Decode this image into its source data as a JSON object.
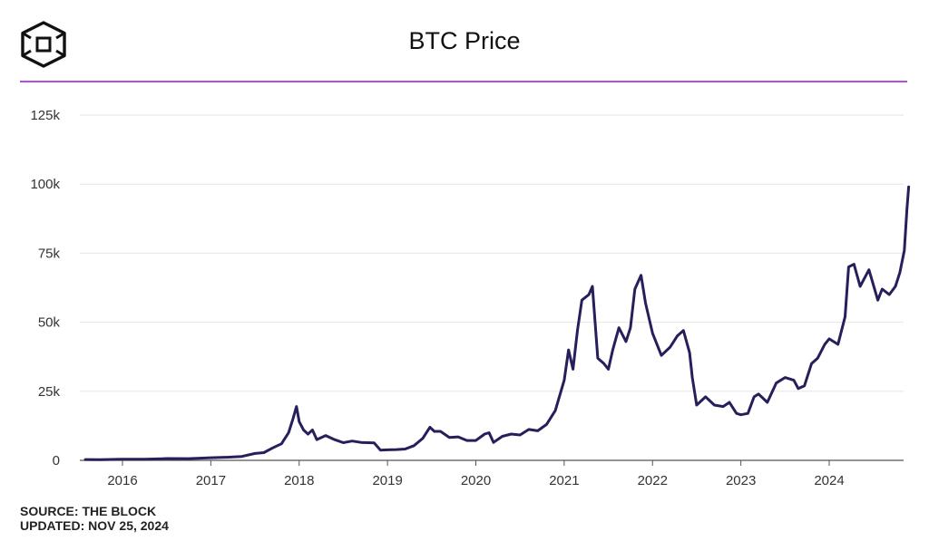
{
  "header": {
    "title": "BTC Price",
    "logo_icon": "the-block-cube-icon",
    "accent_color": "#b14fe0"
  },
  "footer": {
    "source": "SOURCE: THE BLOCK",
    "updated": "UPDATED: NOV 25, 2024"
  },
  "chart_data": {
    "type": "line",
    "title": "BTC Price",
    "xlabel": "",
    "ylabel": "",
    "xlim": [
      2015.58,
      2024.9
    ],
    "ylim": [
      0,
      125000
    ],
    "x_ticks": [
      2016,
      2017,
      2018,
      2019,
      2020,
      2021,
      2022,
      2023,
      2024
    ],
    "x_tick_labels": [
      "2016",
      "2017",
      "2018",
      "2019",
      "2020",
      "2021",
      "2022",
      "2023",
      "2024"
    ],
    "y_ticks": [
      0,
      25000,
      50000,
      75000,
      100000,
      125000
    ],
    "y_tick_labels": [
      "0",
      "25k",
      "50k",
      "75k",
      "100k",
      "125k"
    ],
    "grid": true,
    "line_color": "#25205c",
    "series": [
      {
        "x": [
          2015.58,
          2015.75,
          2016.0,
          2016.25,
          2016.45,
          2016.5,
          2016.75,
          2017.0,
          2017.2,
          2017.35,
          2017.5,
          2017.6,
          2017.7,
          2017.8,
          2017.88,
          2017.93,
          2017.97,
          2018.0,
          2018.05,
          2018.1,
          2018.15,
          2018.2,
          2018.3,
          2018.4,
          2018.5,
          2018.6,
          2018.7,
          2018.85,
          2018.92,
          2019.0,
          2019.1,
          2019.2,
          2019.3,
          2019.4,
          2019.48,
          2019.53,
          2019.6,
          2019.7,
          2019.8,
          2019.9,
          2020.0,
          2020.1,
          2020.15,
          2020.2,
          2020.3,
          2020.4,
          2020.5,
          2020.6,
          2020.7,
          2020.8,
          2020.9,
          2021.0,
          2021.05,
          2021.1,
          2021.15,
          2021.2,
          2021.28,
          2021.32,
          2021.38,
          2021.45,
          2021.5,
          2021.55,
          2021.62,
          2021.7,
          2021.75,
          2021.8,
          2021.87,
          2021.92,
          2022.0,
          2022.1,
          2022.2,
          2022.28,
          2022.35,
          2022.42,
          2022.45,
          2022.5,
          2022.6,
          2022.7,
          2022.8,
          2022.87,
          2022.95,
          2023.0,
          2023.08,
          2023.15,
          2023.2,
          2023.3,
          2023.4,
          2023.5,
          2023.6,
          2023.65,
          2023.72,
          2023.8,
          2023.87,
          2023.95,
          2024.0,
          2024.1,
          2024.18,
          2024.22,
          2024.28,
          2024.35,
          2024.45,
          2024.55,
          2024.6,
          2024.68,
          2024.75,
          2024.8,
          2024.85,
          2024.88,
          2024.9
        ],
        "y": [
          280,
          240,
          430,
          420,
          580,
          670,
          610,
          960,
          1150,
          1400,
          2500,
          2800,
          4500,
          6000,
          10000,
          15000,
          19500,
          14000,
          11000,
          9500,
          11000,
          7500,
          9000,
          7500,
          6400,
          7000,
          6500,
          6300,
          3700,
          3800,
          3900,
          4100,
          5300,
          8000,
          12000,
          10500,
          10500,
          8300,
          8500,
          7200,
          7200,
          9500,
          10000,
          6500,
          8700,
          9500,
          9200,
          11200,
          10700,
          13000,
          18000,
          29000,
          40000,
          33000,
          47000,
          58000,
          60000,
          63000,
          37000,
          35000,
          33000,
          40000,
          48000,
          43000,
          48000,
          62000,
          67000,
          57000,
          46000,
          38000,
          41000,
          45000,
          47000,
          39000,
          30000,
          20000,
          23000,
          20000,
          19500,
          21000,
          17000,
          16500,
          17000,
          23000,
          24000,
          21000,
          28000,
          30000,
          29000,
          26000,
          27000,
          35000,
          37000,
          42000,
          44000,
          42000,
          52000,
          70000,
          71000,
          63000,
          69000,
          58000,
          62000,
          60000,
          63000,
          68000,
          76000,
          91000,
          99000
        ]
      }
    ]
  }
}
